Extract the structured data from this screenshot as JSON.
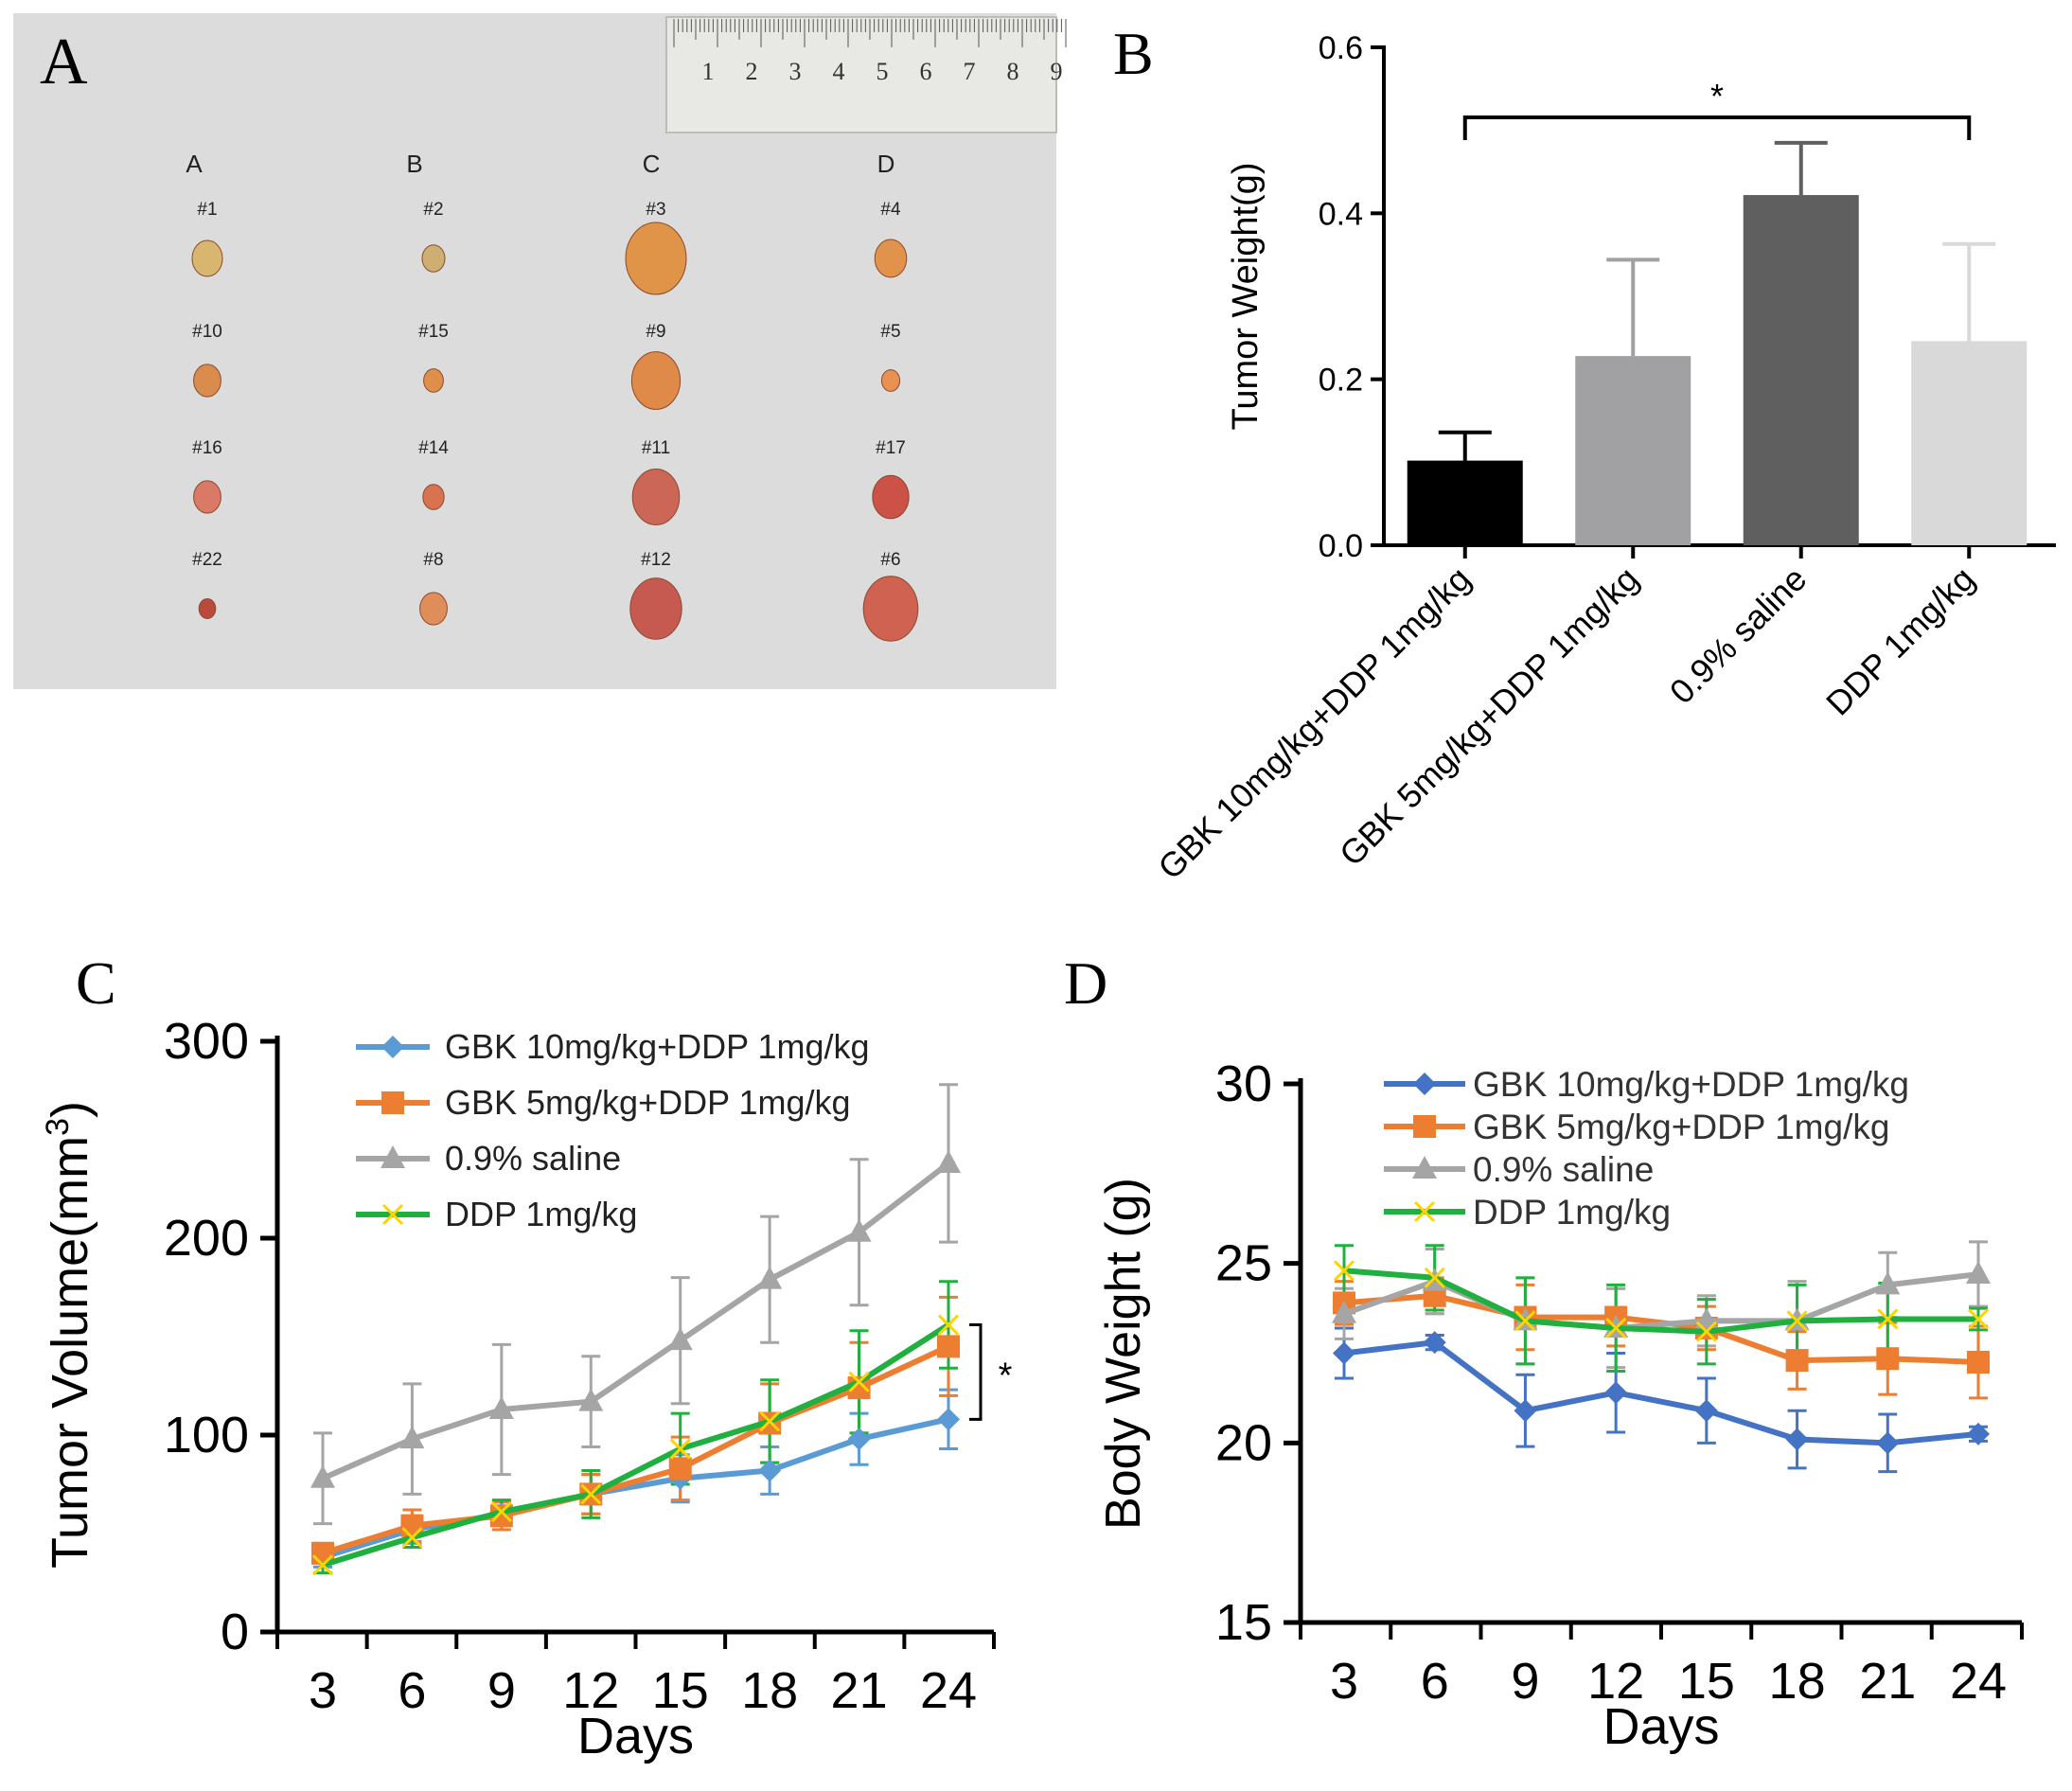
{
  "chart_data": [
    {
      "panel": "A",
      "type": "photo",
      "column_labels": [
        "A",
        "B",
        "C",
        "D"
      ],
      "ruler_numbers": [
        "1",
        "2",
        "3",
        "4",
        "5",
        "6",
        "7",
        "8",
        "9"
      ],
      "specimens": [
        {
          "col": 0,
          "row": 0,
          "label": "#1",
          "size": 1.0,
          "color": "#d9b670"
        },
        {
          "col": 0,
          "row": 1,
          "label": "#10",
          "size": 0.9,
          "color": "#d98c4c"
        },
        {
          "col": 0,
          "row": 2,
          "label": "#16",
          "size": 0.9,
          "color": "#d97966"
        },
        {
          "col": 0,
          "row": 3,
          "label": "#22",
          "size": 0.55,
          "color": "#b94a3c"
        },
        {
          "col": 1,
          "row": 0,
          "label": "#2",
          "size": 0.75,
          "color": "#cdb071"
        },
        {
          "col": 1,
          "row": 1,
          "label": "#15",
          "size": 0.65,
          "color": "#e08f4a"
        },
        {
          "col": 1,
          "row": 2,
          "label": "#14",
          "size": 0.7,
          "color": "#d9734f"
        },
        {
          "col": 1,
          "row": 3,
          "label": "#8",
          "size": 0.9,
          "color": "#df8e5a"
        },
        {
          "col": 2,
          "row": 0,
          "label": "#3",
          "size": 2.0,
          "color": "#e09448"
        },
        {
          "col": 2,
          "row": 1,
          "label": "#9",
          "size": 1.6,
          "color": "#e08a4a"
        },
        {
          "col": 2,
          "row": 2,
          "label": "#11",
          "size": 1.55,
          "color": "#cc6656"
        },
        {
          "col": 2,
          "row": 3,
          "label": "#12",
          "size": 1.7,
          "color": "#c65a50"
        },
        {
          "col": 3,
          "row": 0,
          "label": "#4",
          "size": 1.05,
          "color": "#e2934b"
        },
        {
          "col": 3,
          "row": 1,
          "label": "#5",
          "size": 0.6,
          "color": "#e89152"
        },
        {
          "col": 3,
          "row": 2,
          "label": "#17",
          "size": 1.2,
          "color": "#cc5146"
        },
        {
          "col": 3,
          "row": 3,
          "label": "#6",
          "size": 1.8,
          "color": "#cf6250"
        }
      ]
    },
    {
      "panel": "B",
      "type": "bar",
      "ylabel": "Tumor Weight(g)",
      "ylim": [
        0,
        0.6
      ],
      "yticks": [
        "0.0",
        "0.2",
        "0.4",
        "0.6"
      ],
      "categories": [
        "GBK 10mg/kg+DDP 1mg/kg",
        "GBK 5mg/kg+DDP 1mg/kg",
        "0.9% saline",
        "DDP 1mg/kg"
      ],
      "values": [
        0.102,
        0.228,
        0.422,
        0.246
      ],
      "errors": [
        0.034,
        0.116,
        0.063,
        0.117
      ],
      "colors": [
        "#000000",
        "#a1a1a4",
        "#5f5f5f",
        "#d9d9d9"
      ],
      "significance": {
        "from": 0,
        "to": 3,
        "label": "*"
      }
    },
    {
      "panel": "C",
      "type": "line",
      "xlabel": "Days",
      "ylabel": "Tumor Volume(mm",
      "ylabel_sup": "3",
      "ylabel_close": ")",
      "x": [
        3,
        6,
        9,
        12,
        15,
        18,
        21,
        24
      ],
      "ylim": [
        0,
        300
      ],
      "yticks": [
        "0",
        "100",
        "200",
        "300"
      ],
      "series": [
        {
          "name": "GBK 10mg/kg+DDP 1mg/kg",
          "color": "#5b9bd5",
          "marker": "diamond",
          "values": [
            38,
            52,
            60,
            70,
            78,
            82,
            98,
            108
          ],
          "errors": [
            5,
            7,
            6,
            10,
            12,
            12,
            13,
            15
          ]
        },
        {
          "name": "GBK 5mg/kg+DDP 1mg/kg",
          "color": "#ed7d31",
          "marker": "square",
          "values": [
            40,
            54,
            59,
            70,
            83,
            106,
            124,
            145
          ],
          "errors": [
            5,
            8,
            7,
            10,
            16,
            20,
            23,
            25
          ]
        },
        {
          "name": "0.9% saline",
          "color": "#a5a5a5",
          "marker": "triangle",
          "values": [
            78,
            98,
            113,
            117,
            148,
            179,
            203,
            238
          ],
          "errors": [
            23,
            28,
            33,
            23,
            32,
            32,
            37,
            40
          ]
        },
        {
          "name": "DDP 1mg/kg",
          "color": "#1fb040",
          "marker": "x",
          "values": [
            34,
            48,
            61,
            70,
            93,
            107,
            127,
            156
          ],
          "errors": [
            4,
            5,
            6,
            12,
            18,
            21,
            26,
            22
          ]
        }
      ],
      "significance": {
        "label": "*"
      }
    },
    {
      "panel": "D",
      "type": "line",
      "xlabel": "Days",
      "ylabel": "Body Weight (g)",
      "x": [
        3,
        6,
        9,
        12,
        15,
        18,
        21,
        24
      ],
      "ylim": [
        15,
        30
      ],
      "yticks": [
        "15",
        "20",
        "25",
        "30"
      ],
      "series": [
        {
          "name": "GBK 10mg/kg+DDP 1mg/kg",
          "color": "#4472c4",
          "marker": "diamond",
          "values": [
            22.5,
            22.8,
            20.9,
            21.4,
            20.9,
            20.1,
            20.0,
            20.25
          ],
          "errors": [
            0.7,
            0.2,
            1.0,
            1.1,
            0.9,
            0.8,
            0.8,
            0.2
          ]
        },
        {
          "name": "GBK 5mg/kg+DDP 1mg/kg",
          "color": "#ed7d31",
          "marker": "square",
          "values": [
            23.9,
            24.1,
            23.5,
            23.5,
            23.2,
            22.3,
            22.35,
            22.25
          ],
          "errors": [
            0.6,
            0.5,
            0.9,
            0.8,
            0.6,
            0.8,
            1.0,
            1.0
          ]
        },
        {
          "name": "0.9% saline",
          "color": "#a5a5a5",
          "marker": "triangle",
          "values": [
            23.6,
            24.5,
            23.4,
            23.2,
            23.4,
            23.4,
            24.4,
            24.7
          ],
          "errors": [
            0.7,
            0.9,
            1.2,
            1.1,
            0.7,
            1.1,
            0.9,
            0.9
          ]
        },
        {
          "name": "DDP 1mg/kg",
          "color": "#1fb040",
          "marker": "x",
          "values": [
            24.8,
            24.6,
            23.4,
            23.2,
            23.1,
            23.4,
            23.45,
            23.45
          ],
          "errors": [
            0.7,
            0.9,
            1.2,
            1.2,
            0.9,
            1.0,
            1.0,
            0.3
          ]
        }
      ]
    }
  ]
}
